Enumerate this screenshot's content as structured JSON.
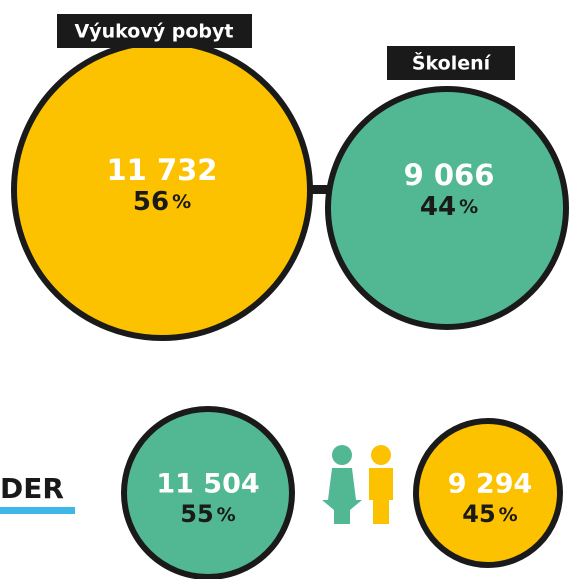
{
  "top": {
    "items": [
      {
        "label": "Výukový pobyt",
        "count": "11 732",
        "percent": "56",
        "unit": "%"
      },
      {
        "label": "Školení",
        "count": "9 066",
        "percent": "44",
        "unit": "%"
      }
    ]
  },
  "gender": {
    "heading": "DER",
    "items": [
      {
        "count": "11 504",
        "percent": "55",
        "unit": "%"
      },
      {
        "count": "9 294",
        "percent": "45",
        "unit": "%"
      }
    ]
  }
}
